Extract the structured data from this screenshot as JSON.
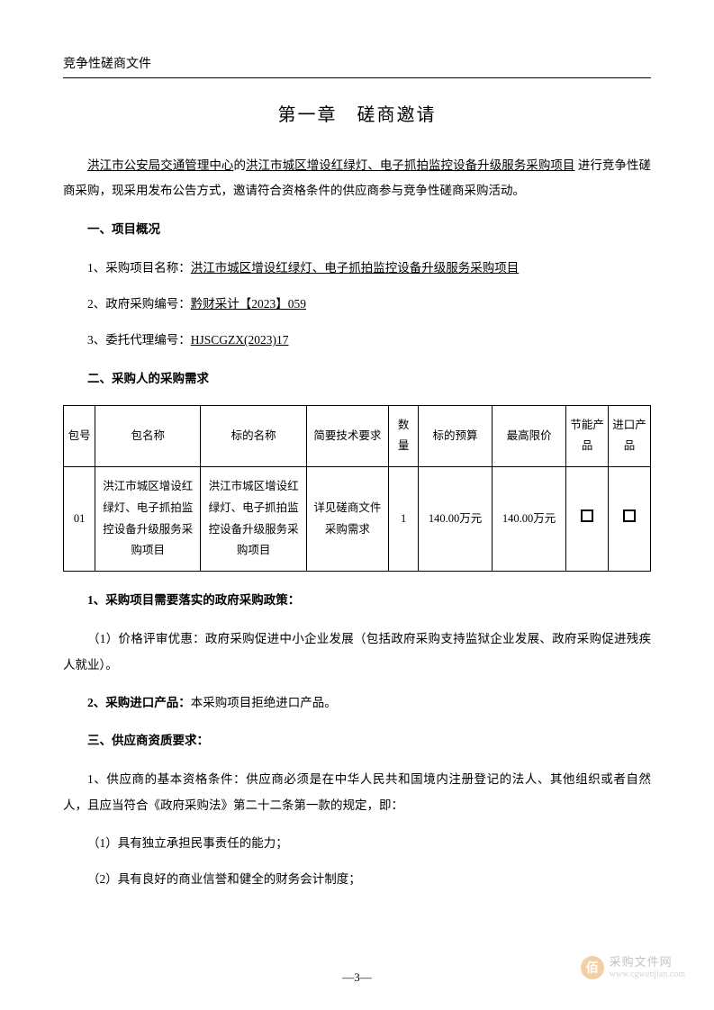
{
  "header": {
    "doc_type": "竞争性磋商文件"
  },
  "chapter": {
    "title": "第一章　磋商邀请"
  },
  "intro": {
    "prefix": "洪江市公安局交通管理中心",
    "mid": "的",
    "project_underlined": "洪江市城区增设红绿灯、电子抓拍监控设备升级服务采购项目",
    "suffix": " 进行竞争性磋商采购，现采用发布公告方式，邀请符合资格条件的供应商参与竞争性磋商采购活动。"
  },
  "section1": {
    "heading": "一、项目概况",
    "item1_label": "1、采购项目名称：",
    "item1_value": "洪江市城区增设红绿灯、电子抓拍监控设备升级服务采购项目",
    "item2_label": "2、政府采购编号：",
    "item2_value": "黔财采计【2023】059",
    "item3_label": "3、委托代理编号：",
    "item3_value": "HJSCGZX(2023)17"
  },
  "section2": {
    "heading": "二、采购人的采购需求"
  },
  "table": {
    "headers": {
      "pkgno": "包号",
      "pkgname": "包名称",
      "subject": "标的名称",
      "tech": "简要技术要求",
      "qty": "数量",
      "budget": "标的预算",
      "max": "最高限价",
      "eco": "节能产品",
      "import": "进口产品"
    },
    "rows": [
      {
        "pkgno": "01",
        "pkgname": "洪江市城区增设红绿灯、电子抓拍监控设备升级服务采购项目",
        "subject": "洪江市城区增设红绿灯、电子抓拍监控设备升级服务采购项目",
        "tech": "详见磋商文件采购需求",
        "qty": "1",
        "budget": "140.00万元",
        "max": "140.00万元"
      }
    ]
  },
  "policy": {
    "heading": "1、采购项目需要落实的政府采购政策：",
    "p1": "（1）价格评审优惠：政府采购促进中小企业发展（包括政府采购支持监狱企业发展、政府采购促进残疾人就业）。"
  },
  "import_policy": {
    "heading_prefix": "2、采购进口产品：",
    "text": "本采购项目拒绝进口产品。"
  },
  "section3": {
    "heading": "三、供应商资质要求：",
    "p1": "1、供应商的基本资格条件：供应商必须是在中华人民共和国境内注册登记的法人、其他组织或者自然人，且应当符合《政府采购法》第二十二条第一款的规定，即：",
    "b1": "（1）具有独立承担民事责任的能力；",
    "b2": "（2）具有良好的商业信誉和健全的财务会计制度；"
  },
  "footer": {
    "page": "—3—",
    "watermark_char": "佰",
    "watermark_cn": "采购文件网",
    "watermark_url": "www.cgwenjian.com"
  }
}
